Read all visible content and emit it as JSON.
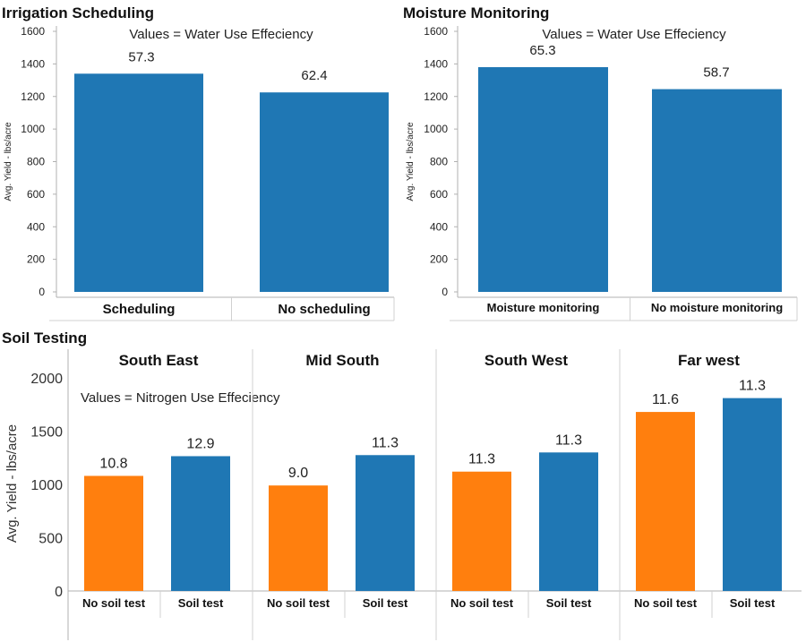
{
  "colors": {
    "blue": "#1F77B4",
    "orange": "#FF7F0E"
  },
  "chart_data": [
    {
      "type": "bar",
      "title": "Irrigation Scheduling",
      "note": "Values = Water Use Effeciency",
      "ylabel": "Avg. Yield - lbs/acre",
      "ylim": [
        0,
        1600
      ],
      "yticks": [
        "0",
        "200",
        "400",
        "600",
        "800",
        "1000",
        "1200",
        "1400",
        "1600"
      ],
      "categories": [
        "Scheduling",
        "No scheduling"
      ],
      "values": [
        1340,
        1225
      ],
      "labels": [
        "57.3",
        "62.4"
      ],
      "colors": [
        "#1F77B4",
        "#1F77B4"
      ]
    },
    {
      "type": "bar",
      "title": "Moisture Monitoring",
      "note": "Values = Water Use Effeciency",
      "ylabel": "Avg. Yield - lbs/acre",
      "ylim": [
        0,
        1600
      ],
      "yticks": [
        "0",
        "200",
        "400",
        "600",
        "800",
        "1000",
        "1200",
        "1400",
        "1600"
      ],
      "categories": [
        "Moisture monitoring",
        "No moisture monitoring"
      ],
      "values": [
        1380,
        1245
      ],
      "labels": [
        "65.3",
        "58.7"
      ],
      "colors": [
        "#1F77B4",
        "#1F77B4"
      ]
    },
    {
      "type": "bar",
      "title": "Soil Testing",
      "note": "Values = Nitrogen Use Effeciency",
      "ylabel": "Avg. Yield - lbs/acre",
      "ylim": [
        0,
        2000
      ],
      "yticks": [
        "0",
        "500",
        "1000",
        "1500",
        "2000"
      ],
      "facets": [
        {
          "name": "South East",
          "categories": [
            "No soil test",
            "Soil test"
          ],
          "values": [
            1080,
            1265
          ],
          "labels": [
            "10.8",
            "12.9"
          ]
        },
        {
          "name": "Mid South",
          "categories": [
            "No soil test",
            "Soil test"
          ],
          "values": [
            990,
            1275
          ],
          "labels": [
            "9.0",
            "11.3"
          ]
        },
        {
          "name": "South West",
          "categories": [
            "No soil test",
            "Soil test"
          ],
          "values": [
            1120,
            1300
          ],
          "labels": [
            "11.3",
            "11.3"
          ]
        },
        {
          "name": "Far west",
          "categories": [
            "No soil test",
            "Soil test"
          ],
          "values": [
            1680,
            1810
          ],
          "labels": [
            "11.6",
            "11.3"
          ]
        }
      ],
      "bar_colors": [
        "#FF7F0E",
        "#1F77B4"
      ]
    }
  ]
}
